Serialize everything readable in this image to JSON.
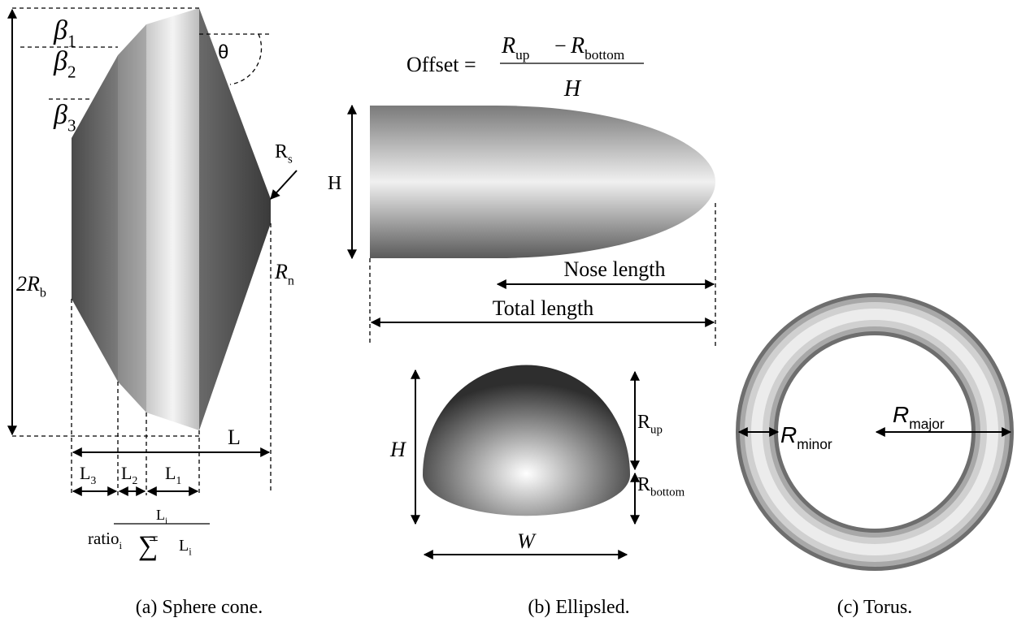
{
  "sphere_cone": {
    "caption": "(a) Sphere cone.",
    "beta_1": {
      "base": "β",
      "sub": "1"
    },
    "beta_2": {
      "base": "β",
      "sub": "2"
    },
    "beta_3": {
      "base": "β",
      "sub": "3"
    },
    "theta": "θ",
    "R_s": {
      "base": "R",
      "sub": "s"
    },
    "R_n": {
      "base": "R",
      "sub": "n"
    },
    "diameter": {
      "base": "2R",
      "sub": "b"
    },
    "L": "L",
    "L_3": {
      "base": "L",
      "sub": "3"
    },
    "L_2": {
      "base": "L",
      "sub": "2"
    },
    "L_1": {
      "base": "L",
      "sub": "1"
    },
    "ratio": {
      "lhs": {
        "base": "ratio",
        "sub": "i"
      },
      "eq": "=",
      "numerator": {
        "base": "L",
        "sub": "i"
      },
      "sum": "∑",
      "denominator": {
        "base": "L",
        "sub": "i"
      }
    }
  },
  "ellipsled": {
    "caption": "(b) Ellipsled.",
    "offset_formula": {
      "lhs": "Offset =",
      "num_a": {
        "base": "R",
        "sub": "up"
      },
      "minus": "−",
      "num_b": {
        "base": "R",
        "sub": "bottom"
      },
      "den": "H"
    },
    "height": "H",
    "nose_length": "Nose length",
    "total_length": "Total length"
  },
  "hemisphere": {
    "height": "H",
    "width": "W",
    "R_up": {
      "base": "R",
      "sub": "up"
    },
    "R_bottom": {
      "base": "R",
      "sub": "bottom"
    }
  },
  "torus": {
    "caption": "(c) Torus.",
    "R_minor": {
      "base": "R",
      "sub": "minor"
    },
    "R_major": {
      "base": "R",
      "sub": "major"
    }
  }
}
